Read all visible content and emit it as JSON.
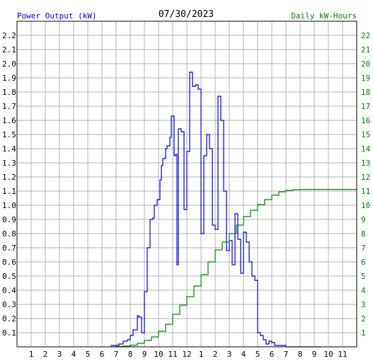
{
  "chart_data": {
    "type": "line",
    "title": "07/30/2023",
    "ylabel": "Power Output (kW)",
    "ylabel_right": "Daily kW-Hours",
    "x_tick_labels": [
      "1",
      "2",
      "3",
      "4",
      "5",
      "6",
      "7",
      "8",
      "9",
      "10",
      "11",
      "12",
      "1",
      "2",
      "3",
      "4",
      "5",
      "6",
      "7",
      "8",
      "9",
      "10",
      "11"
    ],
    "y_ticks": [
      "0.1",
      "0.2",
      "0.3",
      "0.4",
      "0.5",
      "0.6",
      "0.7",
      "0.8",
      "0.9",
      "1.0",
      "1.1",
      "1.2",
      "1.3",
      "1.4",
      "1.5",
      "1.6",
      "1.7",
      "1.8",
      "1.9",
      "2.0",
      "2.1",
      "2.2"
    ],
    "y2_ticks": [
      "1",
      "2",
      "3",
      "4",
      "5",
      "6",
      "7",
      "8",
      "9",
      "10",
      "11",
      "12",
      "13",
      "14",
      "15",
      "16",
      "17",
      "18",
      "19",
      "20",
      "21",
      "22"
    ],
    "xlim": [
      0,
      24
    ],
    "ylim": [
      0,
      2.3
    ],
    "y2lim": [
      0,
      23
    ],
    "grid": true,
    "series": [
      {
        "color": "#0000cc",
        "axis": "left",
        "step": true,
        "x": [
          6.6,
          7.0,
          7.2,
          7.5,
          7.8,
          8.0,
          8.2,
          8.5,
          8.6,
          8.8,
          9.0,
          9.1,
          9.2,
          9.4,
          9.6,
          9.7,
          9.9,
          10.1,
          10.2,
          10.3,
          10.5,
          10.6,
          10.8,
          10.9,
          11.0,
          11.1,
          11.2,
          11.3,
          11.4,
          11.6,
          11.8,
          12.0,
          12.2,
          12.4,
          12.6,
          12.8,
          13.0,
          13.2,
          13.4,
          13.6,
          13.8,
          14.0,
          14.2,
          14.4,
          14.6,
          14.8,
          15.0,
          15.2,
          15.4,
          15.6,
          15.8,
          16.0,
          16.2,
          16.4,
          16.6,
          16.8,
          17.0,
          17.2,
          17.4,
          17.6,
          17.8,
          18.0,
          18.2,
          18.5,
          18.8,
          19.0,
          19.2,
          19.4,
          19.6,
          19.8,
          20.0,
          20.5,
          21.0,
          21.5
        ],
        "y": [
          0.01,
          0.01,
          0.02,
          0.04,
          0.05,
          0.08,
          0.12,
          0.22,
          0.21,
          0.1,
          0.39,
          0.39,
          0.7,
          0.9,
          0.91,
          1.0,
          1.04,
          1.18,
          1.28,
          1.33,
          1.4,
          1.42,
          1.48,
          1.63,
          1.63,
          1.35,
          1.36,
          0.58,
          1.54,
          1.52,
          0.97,
          1.38,
          1.94,
          1.84,
          1.85,
          1.82,
          0.8,
          1.35,
          1.5,
          1.4,
          0.86,
          0.83,
          1.77,
          1.6,
          1.1,
          0.68,
          0.75,
          0.58,
          0.94,
          0.76,
          0.52,
          0.81,
          0.74,
          0.6,
          0.5,
          0.47,
          0.1,
          0.08,
          0.05,
          0.02,
          0.04,
          0.03,
          0.01,
          0.01,
          0.01,
          0.0,
          0.0,
          0.0,
          0.0,
          0.0,
          0.0,
          0.0,
          0.0,
          0.0
        ]
      },
      {
        "color": "#008000",
        "axis": "right",
        "step": true,
        "x": [
          6.6,
          7.0,
          7.5,
          8.0,
          8.5,
          9.0,
          9.5,
          10.0,
          10.5,
          11.0,
          11.5,
          12.0,
          12.5,
          13.0,
          13.5,
          14.0,
          14.5,
          15.0,
          15.5,
          16.0,
          16.5,
          17.0,
          17.5,
          18.0,
          18.5,
          19.0,
          19.5,
          20.0,
          21.0,
          22.0,
          23.0,
          24.0
        ],
        "y": [
          0.0,
          0.02,
          0.05,
          0.12,
          0.25,
          0.45,
          0.7,
          1.1,
          1.6,
          2.3,
          2.95,
          3.55,
          4.3,
          5.1,
          6.0,
          6.85,
          7.4,
          8.0,
          8.6,
          9.2,
          9.65,
          10.05,
          10.4,
          10.72,
          10.95,
          11.05,
          11.1,
          11.12,
          11.12,
          11.12,
          11.12,
          11.12
        ]
      }
    ]
  }
}
